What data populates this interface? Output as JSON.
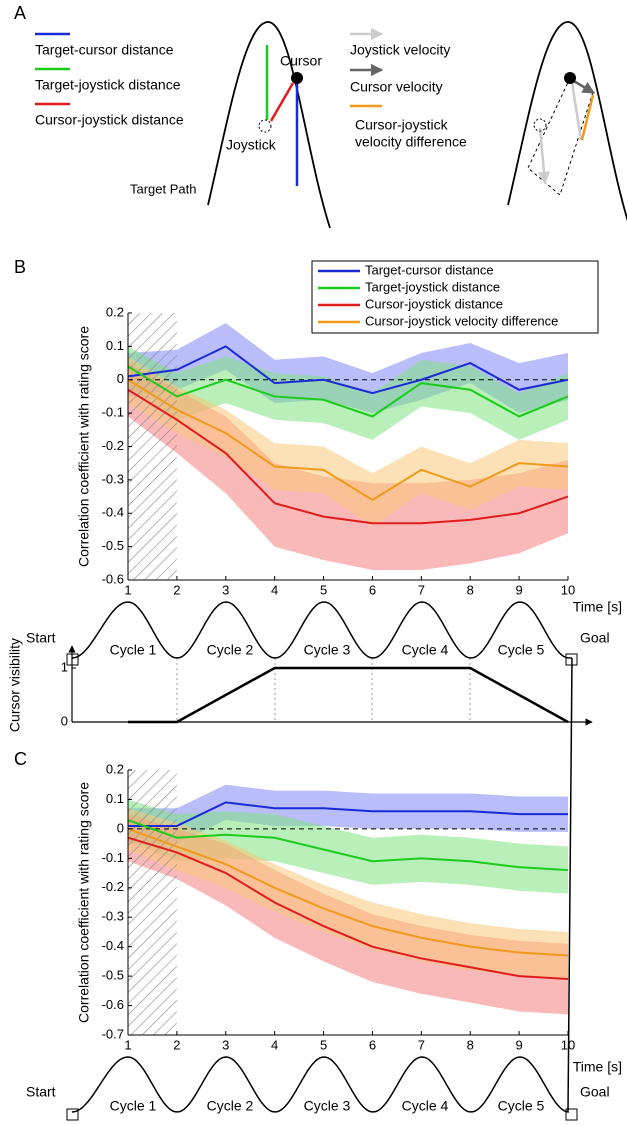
{
  "panel_a": {
    "label": "A",
    "legend_left": [
      "Target-cursor distance",
      "Target-joystick distance",
      "Cursor-joystick distance"
    ],
    "cursor": "Cursor",
    "joystick": "Joystick",
    "target_path": "Target Path",
    "legend_right": [
      "Joystick velocity",
      "Cursor velocity",
      "Cursor-joystick",
      "velocity difference"
    ]
  },
  "cycle_diagrams": [
    {
      "start": "Start",
      "goal": "Goal",
      "cycles": [
        "Cycle 1",
        "Cycle 2",
        "Cycle 3",
        "Cycle 4",
        "Cycle 5"
      ]
    },
    {
      "start": "Start",
      "goal": "Goal",
      "cycles": [
        "Cycle 1",
        "Cycle 2",
        "Cycle 3",
        "Cycle 4",
        "Cycle 5"
      ]
    }
  ],
  "chart_data": [
    {
      "type": "line",
      "panel": "B",
      "ylabel": "Correlation coefficient with rating score",
      "xlabel": "Time [s]",
      "x": [
        1,
        2,
        3,
        4,
        5,
        6,
        7,
        8,
        9,
        10
      ],
      "xlim": [
        1,
        10
      ],
      "xticks": [
        1,
        2,
        3,
        4,
        5,
        6,
        7,
        8,
        9,
        10
      ],
      "ylim": [
        -0.6,
        0.2
      ],
      "yticks": [
        -0.6,
        -0.5,
        -0.4,
        -0.3,
        -0.2,
        -0.1,
        0,
        0.1,
        0.2
      ],
      "hatched_range": [
        1,
        2
      ],
      "reference_line": 0,
      "legend": "top-right",
      "series": [
        {
          "name": "Target-cursor distance",
          "color": "#1a2ad6",
          "band_color": "#7f86f5",
          "values": [
            0.01,
            0.03,
            0.1,
            -0.01,
            0.0,
            -0.04,
            0.0,
            0.05,
            -0.03,
            0.0
          ],
          "upper": [
            0.08,
            0.09,
            0.17,
            0.06,
            0.07,
            0.02,
            0.08,
            0.11,
            0.05,
            0.08
          ],
          "lower": [
            -0.05,
            -0.03,
            0.03,
            -0.07,
            -0.06,
            -0.1,
            -0.06,
            -0.01,
            -0.1,
            -0.06
          ]
        },
        {
          "name": "Target-joystick distance",
          "color": "#1ccc1c",
          "band_color": "#7fe37f",
          "values": [
            0.04,
            -0.05,
            0.0,
            -0.05,
            -0.06,
            -0.11,
            -0.01,
            -0.03,
            -0.11,
            -0.05
          ],
          "upper": [
            0.1,
            0.02,
            0.07,
            0.02,
            0.01,
            -0.04,
            0.06,
            0.04,
            -0.04,
            0.02
          ],
          "lower": [
            -0.02,
            -0.12,
            -0.07,
            -0.12,
            -0.13,
            -0.18,
            -0.08,
            -0.1,
            -0.18,
            -0.12
          ]
        },
        {
          "name": "Cursor-joystick distance",
          "color": "#e01c1c",
          "band_color": "#f58080",
          "values": [
            -0.03,
            -0.12,
            -0.22,
            -0.37,
            -0.41,
            -0.43,
            -0.43,
            -0.42,
            -0.4,
            -0.35
          ],
          "upper": [
            0.05,
            -0.03,
            -0.11,
            -0.25,
            -0.29,
            -0.31,
            -0.31,
            -0.3,
            -0.28,
            -0.24
          ],
          "lower": [
            -0.11,
            -0.22,
            -0.34,
            -0.5,
            -0.54,
            -0.57,
            -0.57,
            -0.55,
            -0.52,
            -0.46
          ]
        },
        {
          "name": "Cursor-joystick velocity difference",
          "color": "#f09a1c",
          "band_color": "#f7c878",
          "values": [
            0.0,
            -0.09,
            -0.16,
            -0.26,
            -0.27,
            -0.36,
            -0.27,
            -0.32,
            -0.25,
            -0.26
          ],
          "upper": [
            0.07,
            -0.02,
            -0.09,
            -0.19,
            -0.2,
            -0.28,
            -0.2,
            -0.25,
            -0.18,
            -0.19
          ],
          "lower": [
            -0.07,
            -0.16,
            -0.23,
            -0.33,
            -0.34,
            -0.44,
            -0.34,
            -0.39,
            -0.32,
            -0.33
          ]
        }
      ]
    },
    {
      "type": "line",
      "ylabel": "Cursor visibility",
      "x": [
        1,
        2,
        4,
        8,
        10
      ],
      "xlim": [
        1,
        10
      ],
      "ylim": [
        0,
        1
      ],
      "yticks": [
        0,
        1
      ],
      "values": [
        0,
        0,
        1,
        1,
        0
      ],
      "color": "#000000"
    },
    {
      "type": "line",
      "panel": "C",
      "ylabel": "Correlation coefficient with rating score",
      "xlabel": "Time [s]",
      "x": [
        1,
        2,
        3,
        4,
        5,
        6,
        7,
        8,
        9,
        10
      ],
      "xlim": [
        1,
        10
      ],
      "xticks": [
        1,
        2,
        3,
        4,
        5,
        6,
        7,
        8,
        9,
        10
      ],
      "ylim": [
        -0.7,
        0.2
      ],
      "yticks": [
        -0.7,
        -0.6,
        -0.5,
        -0.4,
        -0.3,
        -0.2,
        -0.1,
        0,
        0.1,
        0.2
      ],
      "hatched_range": [
        1,
        2
      ],
      "reference_line": 0,
      "series": [
        {
          "color": "#1a2ad6",
          "band_color": "#7f86f5",
          "values": [
            0.01,
            0.01,
            0.09,
            0.07,
            0.07,
            0.06,
            0.06,
            0.06,
            0.05,
            0.05
          ],
          "upper": [
            0.07,
            0.07,
            0.15,
            0.13,
            0.13,
            0.12,
            0.12,
            0.12,
            0.11,
            0.11
          ],
          "lower": [
            -0.05,
            -0.05,
            0.03,
            0.01,
            0.01,
            0.0,
            0.0,
            0.0,
            -0.01,
            -0.01
          ]
        },
        {
          "color": "#1ccc1c",
          "band_color": "#7fe37f",
          "values": [
            0.03,
            -0.03,
            -0.02,
            -0.03,
            -0.07,
            -0.11,
            -0.1,
            -0.11,
            -0.13,
            -0.14
          ],
          "upper": [
            0.1,
            0.05,
            0.06,
            0.05,
            0.01,
            -0.03,
            -0.02,
            -0.03,
            -0.05,
            -0.06
          ],
          "lower": [
            -0.04,
            -0.11,
            -0.1,
            -0.11,
            -0.15,
            -0.19,
            -0.18,
            -0.19,
            -0.21,
            -0.22
          ]
        },
        {
          "color": "#e01c1c",
          "band_color": "#f58080",
          "values": [
            -0.03,
            -0.08,
            -0.15,
            -0.25,
            -0.33,
            -0.4,
            -0.44,
            -0.47,
            -0.5,
            -0.51
          ],
          "upper": [
            0.05,
            0.0,
            -0.05,
            -0.14,
            -0.22,
            -0.29,
            -0.33,
            -0.36,
            -0.38,
            -0.39
          ],
          "lower": [
            -0.11,
            -0.17,
            -0.26,
            -0.37,
            -0.45,
            -0.52,
            -0.56,
            -0.59,
            -0.62,
            -0.63
          ]
        },
        {
          "color": "#f09a1c",
          "band_color": "#f7c878",
          "values": [
            0.0,
            -0.06,
            -0.12,
            -0.2,
            -0.27,
            -0.33,
            -0.37,
            -0.4,
            -0.42,
            -0.43
          ],
          "upper": [
            0.07,
            0.02,
            -0.04,
            -0.12,
            -0.19,
            -0.25,
            -0.29,
            -0.32,
            -0.34,
            -0.35
          ],
          "lower": [
            -0.07,
            -0.14,
            -0.2,
            -0.28,
            -0.35,
            -0.41,
            -0.45,
            -0.48,
            -0.5,
            -0.51
          ]
        }
      ]
    }
  ]
}
